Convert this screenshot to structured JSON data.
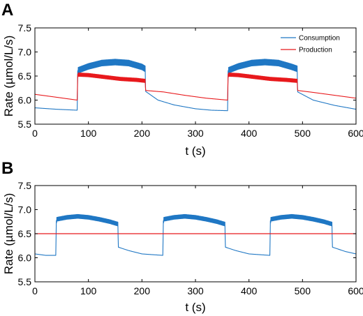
{
  "chart_data": [
    {
      "panel": "A",
      "type": "line",
      "xlabel": "t (s)",
      "ylabel": "Rate (µmol/L/s)",
      "xlim": [
        0,
        600
      ],
      "ylim": [
        5.5,
        7.5
      ],
      "xticks": [
        "0",
        "100",
        "200",
        "300",
        "400",
        "500",
        "600"
      ],
      "yticks": [
        "5.5",
        "6.0",
        "6.5",
        "7.0",
        "7.5"
      ],
      "legend": {
        "placement": "top-right",
        "entries": [
          "Consumption",
          "Production"
        ]
      },
      "series": [
        {
          "name": "Consumption",
          "color": "#1f77c4",
          "x": [
            0,
            40,
            79,
            80,
            81,
            100,
            125,
            150,
            175,
            200,
            206,
            207,
            230,
            260,
            300,
            330,
            360,
            361,
            362,
            380,
            405,
            430,
            455,
            480,
            490,
            491,
            520,
            560,
            600
          ],
          "y": [
            5.84,
            5.81,
            5.79,
            6.55,
            6.62,
            6.7,
            6.77,
            6.79,
            6.77,
            6.69,
            6.65,
            6.18,
            6.0,
            5.9,
            5.82,
            5.79,
            5.78,
            6.55,
            6.62,
            6.7,
            6.77,
            6.79,
            6.77,
            6.69,
            6.65,
            6.17,
            6.0,
            5.89,
            5.81
          ],
          "oscillation_amplitude_during_high_phase": 0.06
        },
        {
          "name": "Production",
          "color": "#e8191c",
          "x": [
            0,
            40,
            79,
            80,
            81,
            100,
            130,
            160,
            190,
            206,
            207,
            240,
            280,
            320,
            360,
            361,
            362,
            380,
            410,
            440,
            470,
            490,
            491,
            520,
            560,
            600
          ],
          "y": [
            6.12,
            6.06,
            6.0,
            6.5,
            6.53,
            6.52,
            6.48,
            6.44,
            6.42,
            6.4,
            6.2,
            6.17,
            6.1,
            6.04,
            6.0,
            6.5,
            6.53,
            6.52,
            6.48,
            6.44,
            6.42,
            6.4,
            6.2,
            6.16,
            6.1,
            6.04
          ],
          "oscillation_amplitude_during_high_phase": 0.035
        }
      ]
    },
    {
      "panel": "B",
      "type": "line",
      "xlabel": "t (s)",
      "ylabel": "Rate (µmol/L/s)",
      "xlim": [
        0,
        600
      ],
      "ylim": [
        5.5,
        7.5
      ],
      "xticks": [
        "0",
        "100",
        "200",
        "300",
        "400",
        "500",
        "600"
      ],
      "yticks": [
        "5.5",
        "6.0",
        "6.5",
        "7.0",
        "7.5"
      ],
      "series": [
        {
          "name": "Consumption",
          "color": "#1f77c4",
          "x": [
            0,
            20,
            39,
            40,
            41,
            60,
            80,
            100,
            120,
            140,
            155,
            156,
            175,
            200,
            225,
            239,
            240,
            241,
            260,
            280,
            300,
            320,
            340,
            355,
            356,
            375,
            400,
            425,
            439,
            440,
            441,
            460,
            480,
            500,
            520,
            540,
            555,
            556,
            580,
            600
          ],
          "y": [
            6.08,
            6.05,
            6.05,
            6.73,
            6.8,
            6.84,
            6.86,
            6.84,
            6.8,
            6.75,
            6.7,
            6.22,
            6.15,
            6.08,
            6.06,
            6.05,
            6.73,
            6.8,
            6.84,
            6.86,
            6.84,
            6.8,
            6.75,
            6.7,
            6.22,
            6.15,
            6.08,
            6.06,
            6.05,
            6.73,
            6.8,
            6.84,
            6.86,
            6.84,
            6.8,
            6.75,
            6.7,
            6.22,
            6.13,
            6.08
          ],
          "oscillation_amplitude_during_high_phase": 0.04
        },
        {
          "name": "Production",
          "color": "#e8191c",
          "x": [
            0,
            600
          ],
          "y": [
            6.5,
            6.5
          ]
        }
      ]
    }
  ]
}
